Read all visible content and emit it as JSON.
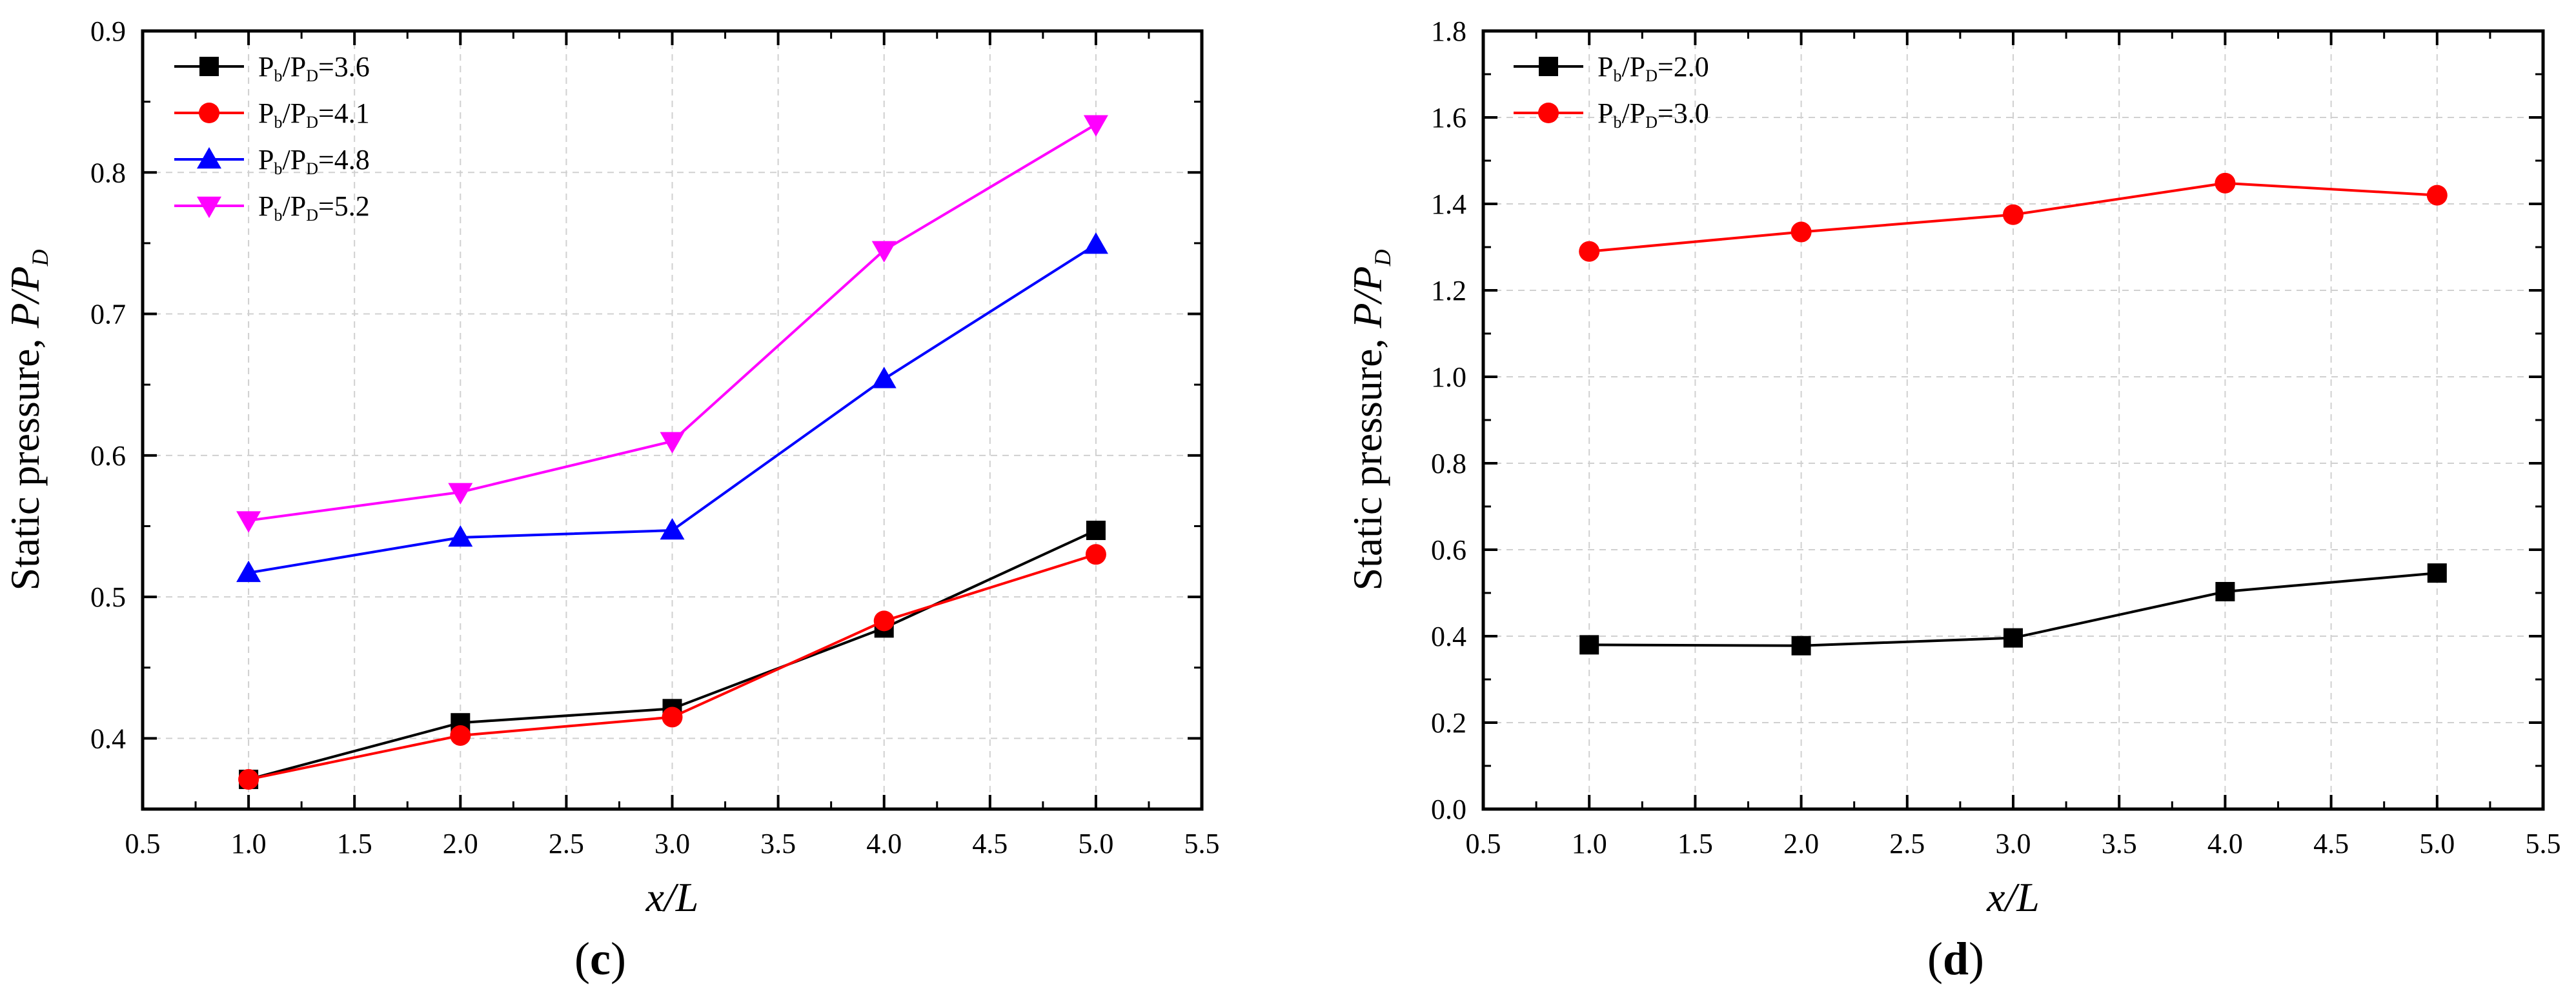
{
  "chart_data": [
    {
      "type": "line",
      "panel_label": "(c)",
      "panel_letter": "c",
      "xlabel": "x/L",
      "ylabel": "Static pressure, P/P",
      "ylabel_sub": "D",
      "xlim": [
        0.5,
        5.5
      ],
      "ylim": [
        0.35,
        0.9
      ],
      "xticks": [
        "0.5",
        "1.0",
        "1.5",
        "2.0",
        "2.5",
        "3.0",
        "3.5",
        "4.0",
        "4.5",
        "5.0",
        "5.5"
      ],
      "yticks": [
        "0.4",
        "0.5",
        "0.6",
        "0.7",
        "0.8",
        "0.9"
      ],
      "grid": true,
      "legend_position": "top-left",
      "x": [
        1.0,
        2.0,
        3.0,
        4.0,
        5.0
      ],
      "series": [
        {
          "name": "Pb/PD=3.6",
          "value_text": "3.6",
          "color": "#000000",
          "marker": "square",
          "values": [
            0.371,
            0.411,
            0.421,
            0.478,
            0.547
          ]
        },
        {
          "name": "Pb/PD=4.1",
          "value_text": "4.1",
          "color": "#ff0000",
          "marker": "circle",
          "values": [
            0.371,
            0.402,
            0.415,
            0.483,
            0.53
          ]
        },
        {
          "name": "Pb/PD=4.8",
          "value_text": "4.8",
          "color": "#0000ff",
          "marker": "triangle-up",
          "values": [
            0.517,
            0.542,
            0.547,
            0.654,
            0.749
          ]
        },
        {
          "name": "Pb/PD=5.2",
          "value_text": "5.2",
          "color": "#ff00ff",
          "marker": "triangle-down",
          "values": [
            0.554,
            0.574,
            0.61,
            0.745,
            0.834
          ]
        }
      ]
    },
    {
      "type": "line",
      "panel_label": "(d)",
      "panel_letter": "d",
      "xlabel": "x/L",
      "ylabel": "Static pressure, P/P",
      "ylabel_sub": "D",
      "xlim": [
        0.5,
        5.5
      ],
      "ylim": [
        0.0,
        1.8
      ],
      "xticks": [
        "0.5",
        "1.0",
        "1.5",
        "2.0",
        "2.5",
        "3.0",
        "3.5",
        "4.0",
        "4.5",
        "5.0",
        "5.5"
      ],
      "yticks": [
        "0.0",
        "0.2",
        "0.4",
        "0.6",
        "0.8",
        "1.0",
        "1.2",
        "1.4",
        "1.6",
        "1.8"
      ],
      "grid": true,
      "legend_position": "top-left",
      "x": [
        1.0,
        2.0,
        3.0,
        4.0,
        5.0
      ],
      "series": [
        {
          "name": "Pb/PD=2.0",
          "value_text": "2.0",
          "color": "#000000",
          "marker": "square",
          "values": [
            0.38,
            0.378,
            0.396,
            0.503,
            0.546
          ]
        },
        {
          "name": "Pb/PD=3.0",
          "value_text": "3.0",
          "color": "#ff0000",
          "marker": "circle",
          "values": [
            1.29,
            1.335,
            1.375,
            1.448,
            1.42
          ]
        }
      ]
    }
  ]
}
